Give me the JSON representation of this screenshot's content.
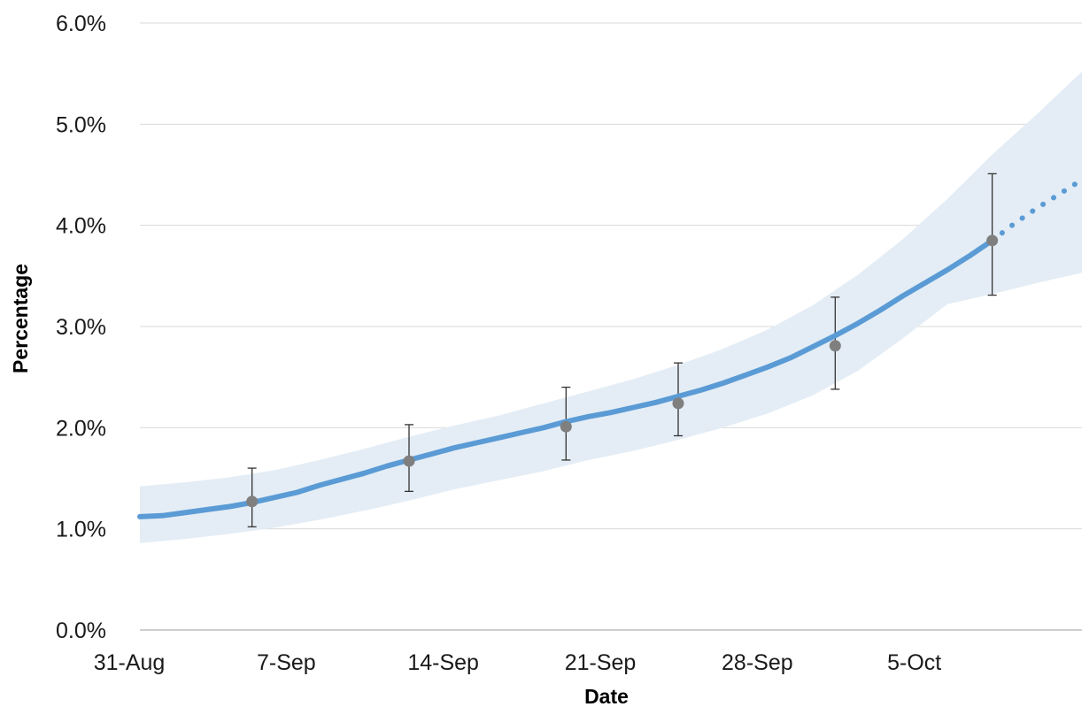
{
  "chart_data": {
    "type": "line",
    "xlabel": "Date",
    "ylabel": "Percentage",
    "x_ticks": [
      "31-Aug",
      "7-Sep",
      "14-Sep",
      "21-Sep",
      "28-Sep",
      "5-Oct"
    ],
    "y_ticks": [
      "0.0%",
      "1.0%",
      "2.0%",
      "3.0%",
      "4.0%",
      "5.0%",
      "6.0%"
    ],
    "xlim": [
      "2020-08-31",
      "2020-10-12"
    ],
    "ylim": [
      0,
      6
    ],
    "grid": "horizontal",
    "colors": {
      "line": "#5b9bd5",
      "band": "#e4edf5",
      "points": "#7f7f7f",
      "error_bars": "#333333",
      "grid": "#d9d9d9"
    },
    "series": [
      {
        "type": "line",
        "x": [
          "2020-08-31",
          "2020-09-01",
          "2020-09-02",
          "2020-09-03",
          "2020-09-04",
          "2020-09-05",
          "2020-09-06",
          "2020-09-07",
          "2020-09-08",
          "2020-09-09",
          "2020-09-10",
          "2020-09-11",
          "2020-09-12",
          "2020-09-13",
          "2020-09-14",
          "2020-09-15",
          "2020-09-16",
          "2020-09-17",
          "2020-09-18",
          "2020-09-19",
          "2020-09-20",
          "2020-09-21",
          "2020-09-22",
          "2020-09-23",
          "2020-09-24",
          "2020-09-25",
          "2020-09-26",
          "2020-09-27",
          "2020-09-28",
          "2020-09-29",
          "2020-09-30",
          "2020-10-01",
          "2020-10-02",
          "2020-10-03",
          "2020-10-04",
          "2020-10-05",
          "2020-10-06",
          "2020-10-07",
          "2020-10-08"
        ],
        "y": [
          1.12,
          1.13,
          1.16,
          1.19,
          1.22,
          1.26,
          1.31,
          1.36,
          1.43,
          1.49,
          1.55,
          1.62,
          1.68,
          1.74,
          1.8,
          1.85,
          1.9,
          1.95,
          2.0,
          2.06,
          2.11,
          2.15,
          2.2,
          2.25,
          2.31,
          2.37,
          2.44,
          2.52,
          2.6,
          2.69,
          2.8,
          2.91,
          3.03,
          3.16,
          3.3,
          3.43,
          3.56,
          3.7,
          3.85
        ]
      },
      {
        "type": "line",
        "style": "dotted",
        "x": [
          "2020-10-08",
          "2020-10-09",
          "2020-10-10",
          "2020-10-11",
          "2020-10-12"
        ],
        "y": [
          3.85,
          4.02,
          4.17,
          4.31,
          4.45
        ]
      },
      {
        "type": "area",
        "x": [
          "2020-08-31",
          "2020-09-02",
          "2020-09-04",
          "2020-09-06",
          "2020-09-08",
          "2020-09-10",
          "2020-09-12",
          "2020-09-14",
          "2020-09-16",
          "2020-09-18",
          "2020-09-20",
          "2020-09-22",
          "2020-09-24",
          "2020-09-26",
          "2020-09-28",
          "2020-09-30",
          "2020-10-02",
          "2020-10-04",
          "2020-10-06",
          "2020-10-08",
          "2020-10-10",
          "2020-10-12"
        ],
        "upper": [
          1.42,
          1.46,
          1.51,
          1.58,
          1.68,
          1.79,
          1.91,
          2.02,
          2.12,
          2.24,
          2.36,
          2.48,
          2.62,
          2.78,
          2.97,
          3.21,
          3.51,
          3.86,
          4.26,
          4.7,
          5.1,
          5.52
        ],
        "lower": [
          0.86,
          0.9,
          0.95,
          1.01,
          1.09,
          1.18,
          1.28,
          1.39,
          1.48,
          1.57,
          1.68,
          1.77,
          1.88,
          2.0,
          2.14,
          2.32,
          2.56,
          2.88,
          3.22,
          3.32,
          3.43,
          3.53
        ]
      },
      {
        "type": "scatter",
        "x": [
          "2020-09-05",
          "2020-09-12",
          "2020-09-19",
          "2020-09-24",
          "2020-10-01",
          "2020-10-08"
        ],
        "y": [
          1.27,
          1.67,
          2.01,
          2.24,
          2.81,
          3.85
        ],
        "error_low": [
          1.02,
          1.37,
          1.68,
          1.92,
          2.38,
          3.31
        ],
        "error_high": [
          1.6,
          2.03,
          2.4,
          2.64,
          3.29,
          4.51
        ]
      }
    ]
  }
}
